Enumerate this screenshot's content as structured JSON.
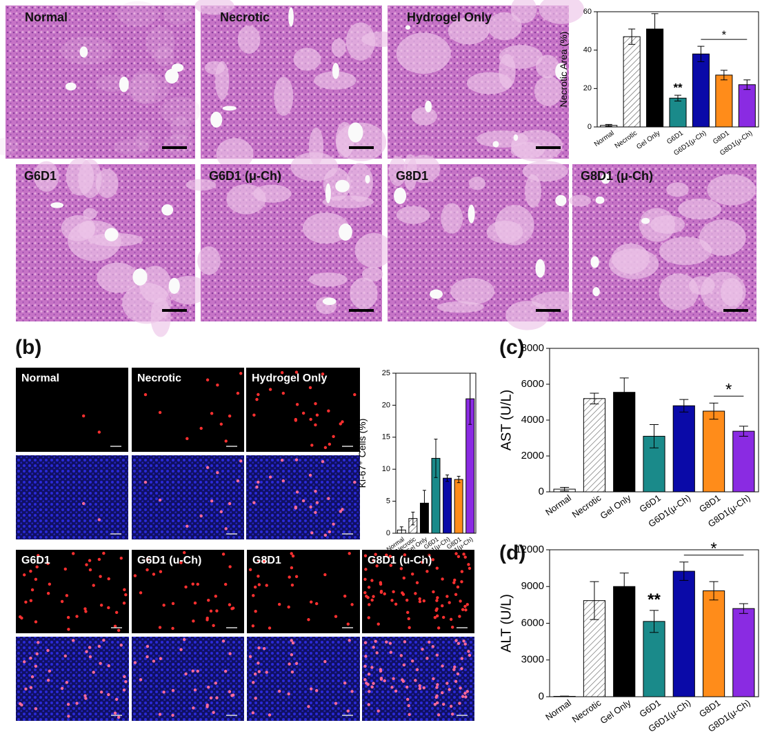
{
  "he_images": [
    "Normal",
    "Necrotic",
    "Hydrogel Only",
    "G6D1",
    "G6D1 (μ-Ch)",
    "G8D1",
    "G8D1 (μ-Ch)"
  ],
  "if_images": [
    "Normal",
    "Necrotic",
    "Hydrogel Only",
    "G6D1",
    "G6D1 (u-Ch)",
    "G8D1",
    "G8D1 (u-Ch)"
  ],
  "panel_labels": [
    "(b)",
    "(c)",
    "(d)"
  ],
  "chart_data": [
    {
      "type": "bar",
      "ylabel": "Necrotic Area (%)",
      "categories": [
        "Normal",
        "Necrotic",
        "Gel Only",
        "G6D1",
        "G6D1(μ-Ch)",
        "G8D1",
        "G8D1(μ-Ch)"
      ],
      "values": [
        0.8,
        47,
        51,
        15,
        38,
        27,
        22
      ],
      "errors": [
        0.5,
        4,
        8,
        1.5,
        4,
        2.5,
        2.5
      ],
      "colors": [
        "#ffffff",
        "#ffffff",
        "#000000",
        "#1a8a8a",
        "#0a0aa8",
        "#ff8c1a",
        "#8a2be2"
      ],
      "patterns": [
        null,
        "hatch",
        null,
        null,
        null,
        null,
        null
      ],
      "ylim": [
        0,
        60
      ],
      "yticks": [
        0,
        20,
        40,
        60
      ],
      "annotations": [
        {
          "text": "**",
          "at": 3
        },
        {
          "text": "*",
          "from": 4,
          "to": 6
        }
      ]
    },
    {
      "type": "bar",
      "ylabel": "Ki-67⁺ Cells (%)",
      "categories": [
        "Normal",
        "Necrotic",
        "Gel Only",
        "G6D1",
        "G6D1(μ-Ch)",
        "G8D1",
        "G8D1(μ-Ch)"
      ],
      "values": [
        0.5,
        2.3,
        4.7,
        11.7,
        8.6,
        8.4,
        21
      ],
      "errors": [
        0.5,
        1,
        2,
        3,
        0.5,
        0.5,
        4
      ],
      "colors": [
        "#ffffff",
        "#ffffff",
        "#000000",
        "#1a8a8a",
        "#0a0aa8",
        "#ff8c1a",
        "#8a2be2"
      ],
      "patterns": [
        null,
        "hatch",
        null,
        null,
        null,
        null,
        null
      ],
      "ylim": [
        0,
        25
      ],
      "yticks": [
        0,
        5,
        10,
        15,
        20,
        25
      ],
      "annotations": []
    },
    {
      "type": "bar",
      "ylabel": "AST (U/L)",
      "categories": [
        "Normal",
        "Necrotic",
        "Gel Only",
        "G6D1",
        "G6D1(μ-Ch)",
        "G8D1",
        "G8D1(μ-Ch)"
      ],
      "values": [
        150,
        5200,
        5550,
        3100,
        4800,
        4500,
        3380
      ],
      "errors": [
        100,
        300,
        800,
        650,
        350,
        450,
        280
      ],
      "colors": [
        "#ffffff",
        "#ffffff",
        "#000000",
        "#1a8a8a",
        "#0a0aa8",
        "#ff8c1a",
        "#8a2be2"
      ],
      "patterns": [
        null,
        "hatch",
        null,
        null,
        null,
        null,
        null
      ],
      "ylim": [
        0,
        8000
      ],
      "yticks": [
        0,
        2000,
        4000,
        6000,
        8000
      ],
      "annotations": [
        {
          "text": "*",
          "from": 5,
          "to": 6
        }
      ]
    },
    {
      "type": "bar",
      "ylabel": "ALT (U/L)",
      "categories": [
        "Normal",
        "Necrotic",
        "Gel Only",
        "G6D1",
        "G6D1(μ-Ch)",
        "G8D1",
        "G8D1(μ-Ch)"
      ],
      "values": [
        30,
        7850,
        9000,
        6150,
        10250,
        8650,
        7200
      ],
      "errors": [
        20,
        1550,
        1100,
        900,
        750,
        750,
        400
      ],
      "colors": [
        "#ffffff",
        "#ffffff",
        "#000000",
        "#1a8a8a",
        "#0a0aa8",
        "#ff8c1a",
        "#8a2be2"
      ],
      "patterns": [
        null,
        "hatch",
        null,
        null,
        null,
        null,
        null
      ],
      "ylim": [
        0,
        12000
      ],
      "yticks": [
        0,
        3000,
        6000,
        9000,
        12000
      ],
      "annotations": [
        {
          "text": "**",
          "at": 3
        },
        {
          "text": "*",
          "from": 4,
          "to": 6
        }
      ]
    }
  ]
}
